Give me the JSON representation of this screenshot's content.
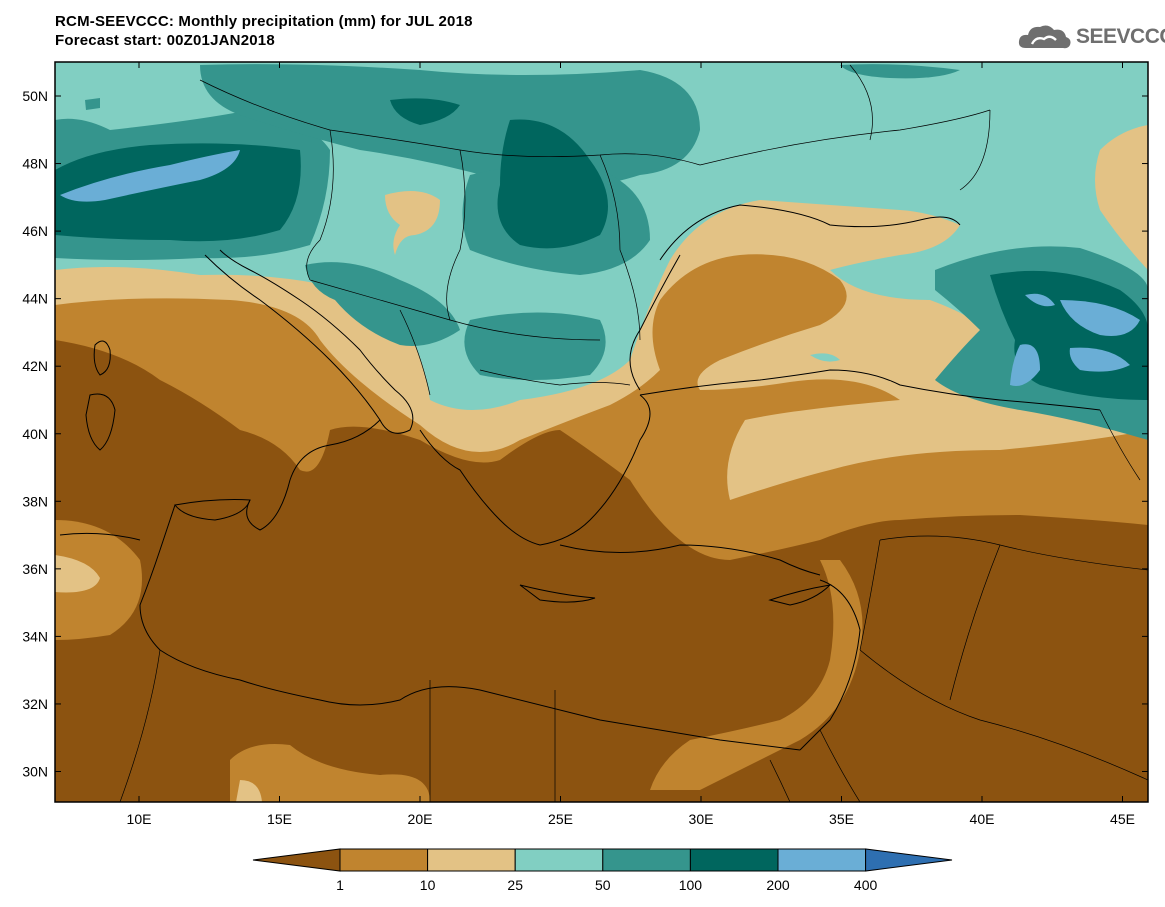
{
  "header": {
    "title": "RCM-SEEVCCC: Monthly precipitation (mm) for JUL 2018",
    "subtitle": "Forecast start: 00Z01JAN2018"
  },
  "logo": {
    "text": "SEEVCCC",
    "icon": "cloud-logo-icon"
  },
  "axes": {
    "lat_ticks": [
      "50N",
      "48N",
      "46N",
      "44N",
      "42N",
      "40N",
      "38N",
      "36N",
      "34N",
      "32N",
      "30N"
    ],
    "lon_ticks": [
      "10E",
      "15E",
      "20E",
      "25E",
      "30E",
      "35E",
      "40E",
      "45E"
    ]
  },
  "legend": {
    "labels": [
      "1",
      "10",
      "25",
      "50",
      "100",
      "200",
      "400"
    ],
    "colors": [
      "#8c5310",
      "#c0842f",
      "#e3c285",
      "#81cfc2",
      "#35958d",
      "#00665e",
      "#6aaed6",
      "#2e6fb1"
    ]
  }
}
